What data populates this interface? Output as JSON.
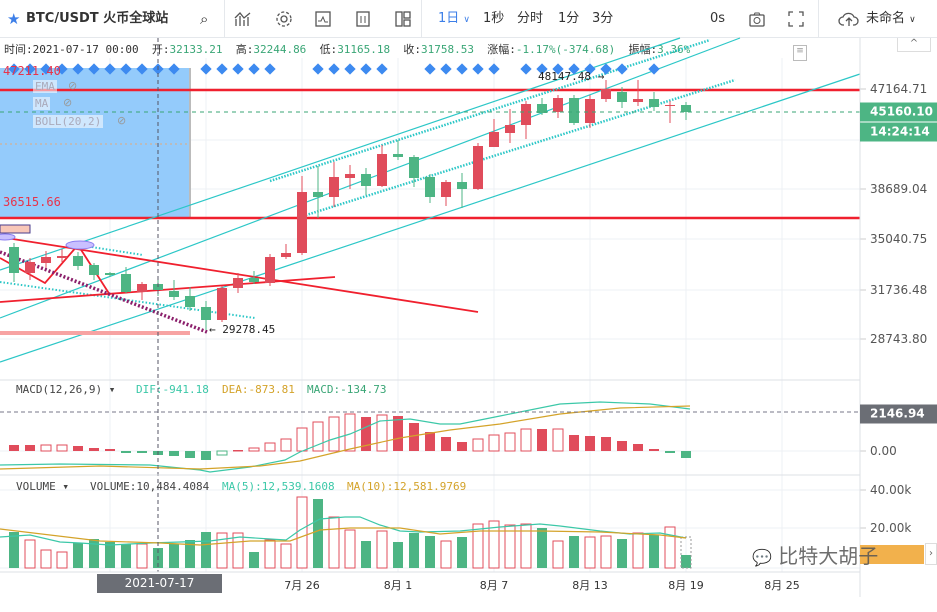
{
  "toolbar": {
    "symbol": "BTC/USDT",
    "exchange": "火币全球站",
    "interval": "1日",
    "intervals": [
      "1秒",
      "分时",
      "1分",
      "3分"
    ],
    "countdown": "0s",
    "layout_name": "未命名"
  },
  "info": {
    "time_label": "时间:",
    "time": "2021-07-17 00:00",
    "open_label": "开:",
    "open": "32133.21",
    "high_label": "高:",
    "high": "32244.86",
    "low_label": "低:",
    "low": "31165.18",
    "close_label": "收:",
    "close": "31758.53",
    "change_label": "涨幅:",
    "change": "-1.17%(-374.68)",
    "amp_label": "振幅:",
    "amp": "3.36%"
  },
  "indicators": [
    "EMA",
    "MA",
    "BOLL(20,2)"
  ],
  "annotations": {
    "top_left": "47211.40",
    "mid_left": "36515.66",
    "high": "48147.48",
    "low": "29278.45"
  },
  "price_axis": [
    "47164.71",
    "38689.04",
    "35040.75",
    "31736.48",
    "28743.80"
  ],
  "current_price": "45160.10",
  "countdown_timer": "14:24:14",
  "macd": {
    "title": "MACD(12,26,9)",
    "dif": "DIF:-941.18",
    "dea": "DEA:-873.81",
    "macd": "MACD:-134.73",
    "axis": [
      "0.00"
    ],
    "tag": "2146.94"
  },
  "volume": {
    "title": "VOLUME",
    "vol": "VOLUME:10,484.4084",
    "ma5": "MA(5):12,539.1608",
    "ma10": "MA(10):12,581.9769",
    "axis": [
      "40.00k",
      "20.00k"
    ]
  },
  "x_axis": {
    "crosshair": "2021-07-17 00:00:00",
    "labels": [
      "7月 26",
      "8月 1",
      "8月 7",
      "8月 13",
      "8月 19",
      "8月 25"
    ]
  },
  "watermark": "比特大胡子",
  "colors": {
    "up": "#e04c5b",
    "down": "#4db584",
    "accent": "#3d7fe8"
  }
}
